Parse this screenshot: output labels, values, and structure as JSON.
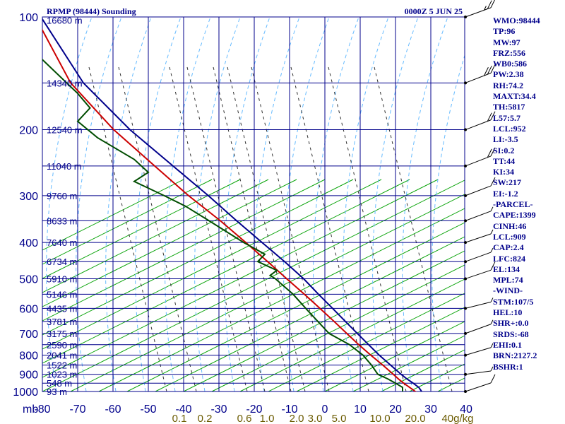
{
  "header": {
    "title": "RPMP (98444) Sounding",
    "datetime": "0000Z  5 JUN 25"
  },
  "chart_data": {
    "type": "skew-t",
    "y_axis": {
      "unit": "mb",
      "scale": "log",
      "range": [
        1000,
        100
      ],
      "ticks": [
        100,
        200,
        300,
        400,
        500,
        600,
        700,
        800,
        900,
        1000
      ]
    },
    "x_axis": {
      "unit": "°C",
      "range": [
        -80,
        40
      ],
      "ticks": [
        -80,
        -70,
        -60,
        -50,
        -40,
        -30,
        -20,
        -10,
        0,
        10,
        20,
        30,
        40
      ]
    },
    "height_labels": [
      {
        "p": 102,
        "label": "16680 m"
      },
      {
        "p": 150,
        "label": "14340 m"
      },
      {
        "p": 200,
        "label": "12540 m"
      },
      {
        "p": 250,
        "label": "11040 m"
      },
      {
        "p": 300,
        "label": "9760 m"
      },
      {
        "p": 350,
        "label": "8633 m"
      },
      {
        "p": 400,
        "label": "7640 m"
      },
      {
        "p": 450,
        "label": "6734 m"
      },
      {
        "p": 500,
        "label": "5910 m"
      },
      {
        "p": 550,
        "label": "5146 m"
      },
      {
        "p": 600,
        "label": "4435 m"
      },
      {
        "p": 650,
        "label": "3781 m"
      },
      {
        "p": 700,
        "label": "3175 m"
      },
      {
        "p": 750,
        "label": "2590 m"
      },
      {
        "p": 800,
        "label": "2041 m"
      },
      {
        "p": 850,
        "label": "1522 m"
      },
      {
        "p": 900,
        "label": "1023 m"
      },
      {
        "p": 950,
        "label": "548 m"
      },
      {
        "p": 1000,
        "label": "93 m"
      }
    ],
    "mixing_ratio_labels": [
      "0.1",
      "0.2",
      "0.6",
      "1.0",
      "2.0",
      "3.0",
      "5.0",
      "10.0",
      "20.0",
      "40g/kg"
    ],
    "series": [
      {
        "colour": "#cc0000",
        "points": [
          [
            1008,
            26.4
          ],
          [
            1000,
            25.6
          ],
          [
            975,
            24.0
          ],
          [
            950,
            22.3
          ],
          [
            925,
            20.8
          ],
          [
            900,
            19.4
          ],
          [
            850,
            16.4
          ],
          [
            800,
            13.0
          ],
          [
            750,
            9.6
          ],
          [
            700,
            6.2
          ],
          [
            650,
            2.6
          ],
          [
            600,
            -1.4
          ],
          [
            550,
            -5.8
          ],
          [
            500,
            -10.8
          ],
          [
            450,
            -16.2
          ],
          [
            400,
            -22.4
          ],
          [
            350,
            -29.6
          ],
          [
            300,
            -38.6
          ],
          [
            250,
            -48.2
          ],
          [
            200,
            -59.8
          ],
          [
            150,
            -72.0
          ],
          [
            100,
            -82.0
          ]
        ]
      },
      {
        "colour": "#00008b",
        "points": [
          [
            1008,
            27.8
          ],
          [
            1000,
            27.4
          ],
          [
            975,
            26.6
          ],
          [
            950,
            25.0
          ],
          [
            925,
            23.2
          ],
          [
            900,
            21.6
          ],
          [
            850,
            18.6
          ],
          [
            800,
            15.4
          ],
          [
            750,
            12.4
          ],
          [
            700,
            9.2
          ],
          [
            650,
            5.8
          ],
          [
            600,
            2.2
          ],
          [
            550,
            -1.8
          ],
          [
            500,
            -6.0
          ],
          [
            450,
            -11.4
          ],
          [
            400,
            -17.8
          ],
          [
            350,
            -25.0
          ],
          [
            300,
            -33.0
          ],
          [
            250,
            -43.0
          ],
          [
            200,
            -55.2
          ],
          [
            150,
            -68.4
          ],
          [
            100,
            -80.4
          ]
        ]
      },
      {
        "colour": "#004d00",
        "points": [
          [
            1008,
            22.4
          ],
          [
            1000,
            22.0
          ],
          [
            975,
            22.0
          ],
          [
            950,
            20.0
          ],
          [
            925,
            17.8
          ],
          [
            900,
            15.0
          ],
          [
            850,
            13.2
          ],
          [
            800,
            10.8
          ],
          [
            750,
            7.0
          ],
          [
            700,
            1.2
          ],
          [
            650,
            -2.0
          ],
          [
            600,
            -5.4
          ],
          [
            550,
            -9.0
          ],
          [
            500,
            -14.0
          ],
          [
            490,
            -15.5
          ],
          [
            475,
            -13.6
          ],
          [
            450,
            -19.0
          ],
          [
            430,
            -17.0
          ],
          [
            400,
            -23.0
          ],
          [
            350,
            -32.8
          ],
          [
            320,
            -39.5
          ],
          [
            300,
            -45.5
          ],
          [
            275,
            -54.0
          ],
          [
            260,
            -50.0
          ],
          [
            240,
            -54.0
          ],
          [
            210,
            -64.4
          ],
          [
            190,
            -70.0
          ],
          [
            175,
            -66.5
          ],
          [
            160,
            -70.0
          ],
          [
            130,
            -80.0
          ],
          [
            110,
            -85.0
          ]
        ]
      }
    ],
    "wind_barbs": [
      {
        "p": 100,
        "dir": 250,
        "spd": 25
      },
      {
        "p": 150,
        "dir": 265,
        "spd": 30
      },
      {
        "p": 200,
        "dir": 260,
        "spd": 20
      },
      {
        "p": 250,
        "dir": 270,
        "spd": 20
      },
      {
        "p": 300,
        "dir": 260,
        "spd": 10
      },
      {
        "p": 350,
        "dir": 255,
        "spd": 5
      },
      {
        "p": 400,
        "dir": 240,
        "spd": 5
      },
      {
        "p": 450,
        "dir": 250,
        "spd": 5
      },
      {
        "p": 500,
        "dir": 240,
        "spd": 10
      },
      {
        "p": 600,
        "dir": 220,
        "spd": 5
      },
      {
        "p": 700,
        "dir": 250,
        "spd": 5
      },
      {
        "p": 800,
        "dir": 230,
        "spd": 5
      },
      {
        "p": 900,
        "dir": 200,
        "spd": 5
      },
      {
        "p": 1000,
        "dir": 240,
        "spd": 10
      }
    ]
  },
  "indices": [
    "WMO:98444",
    "TP:96",
    "MW:97",
    "FRZ:556",
    "WB0:586",
    "PW:2.38",
    "RH:74.2",
    "MAXT:34.4",
    "TH:5817",
    "L57:5.7",
    "LCL:952",
    "LI:-3.5",
    "SI:0.2",
    "TT:44",
    "KI:34",
    "SW:217",
    "EI:-1.2",
    "-PARCEL-",
    "CAPE:1399",
    "CINH:46",
    "LCL:909",
    "CAP:2.4",
    "LFC:824",
    "EL:134",
    "MPL:74",
    "-WIND-",
    "STM:107/5",
    "HEL:10",
    "SHR+:0.0",
    "SRDS:-68",
    "EHI:0.1",
    "BRN:2127.2",
    "BSHR:1"
  ],
  "colors": {
    "grid": "#00008b",
    "dry_adiabat": "#00a000",
    "moist_adiabat": "#66bbff",
    "mixing_ratio": "#333333",
    "mixing_label": "#6b5b00",
    "temperature": "#cc0000",
    "dewpoint": "#004d00",
    "parcel": "#00008b",
    "title": "#00008b"
  }
}
